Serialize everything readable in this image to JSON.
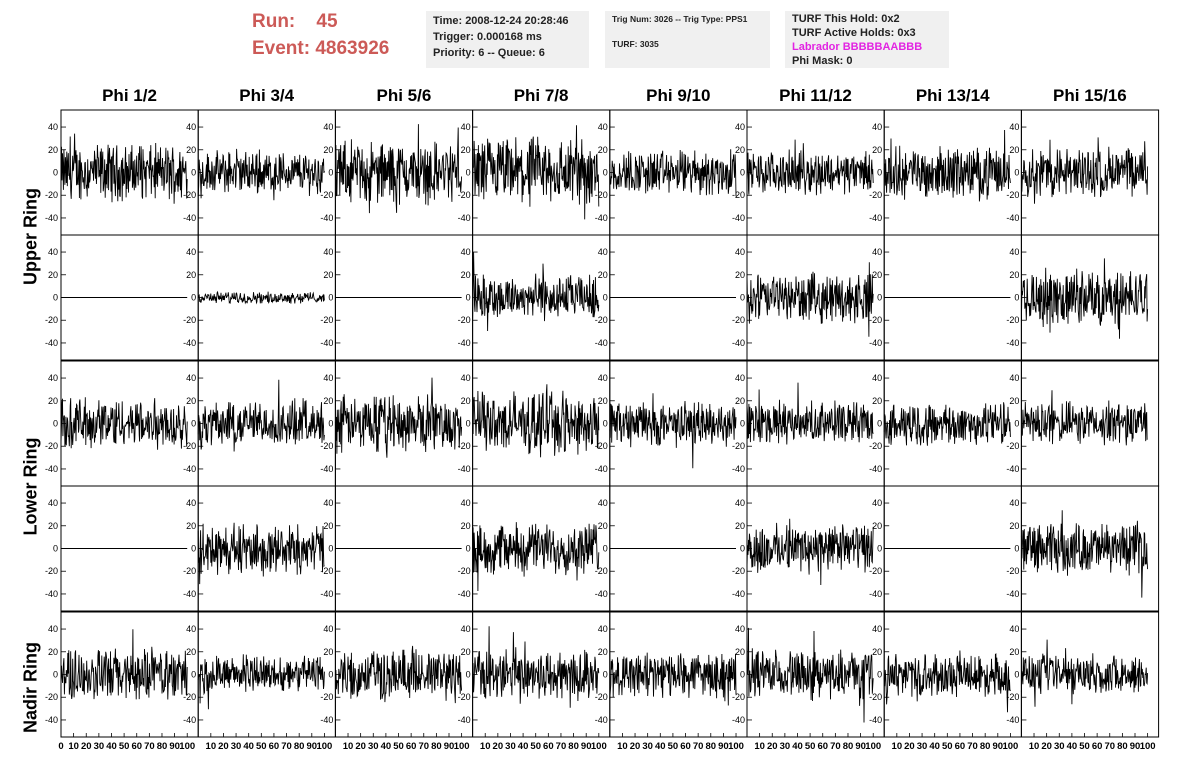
{
  "run_label": "Run:",
  "run_value": "45",
  "event_label": "Event:",
  "event_value": "4863926",
  "time_box": {
    "time": "Time: 2008-12-24 20:28:46",
    "trigger": "Trigger: 0.000168 ms",
    "priority": "Priority: 6 -- Queue: 6"
  },
  "trig_box": {
    "trig": "Trig Num: 3026 -- Trig Type: PPS1",
    "turf": "TURF: 3035"
  },
  "turf_box": {
    "this_hold": "TURF This Hold: 0x2",
    "active_holds": "TURF Active Holds: 0x3",
    "labrador": "Labrador BBBBBAABBB",
    "phi_mask": "Phi Mask: 0"
  },
  "columns": [
    "Phi 1/2",
    "Phi 3/4",
    "Phi 5/6",
    "Phi 7/8",
    "Phi 9/10",
    "Phi 11/12",
    "Phi 13/14",
    "Phi 15/16"
  ],
  "ring_labels": [
    "Upper Ring",
    "Lower Ring",
    "Nadir Ring"
  ],
  "chart_data": {
    "type": "line",
    "x_ticks": [
      "0",
      "10",
      "20",
      "30",
      "40",
      "50",
      "60",
      "70",
      "80",
      "90",
      "100"
    ],
    "y_ticks": [
      "40",
      "20",
      "0",
      "-20",
      "-40"
    ],
    "ylim": [
      -55,
      55
    ],
    "xlim": [
      0,
      100
    ],
    "grid": false,
    "amplitudes": [
      [
        20,
        15,
        22,
        25,
        16,
        15,
        18,
        18
      ],
      [
        0,
        4,
        0,
        16,
        0,
        17,
        0,
        20
      ],
      [
        18,
        16,
        20,
        22,
        16,
        15,
        15,
        15
      ],
      [
        0,
        18,
        0,
        18,
        0,
        17,
        0,
        18
      ],
      [
        19,
        13,
        18,
        18,
        16,
        17,
        15,
        14
      ]
    ]
  }
}
